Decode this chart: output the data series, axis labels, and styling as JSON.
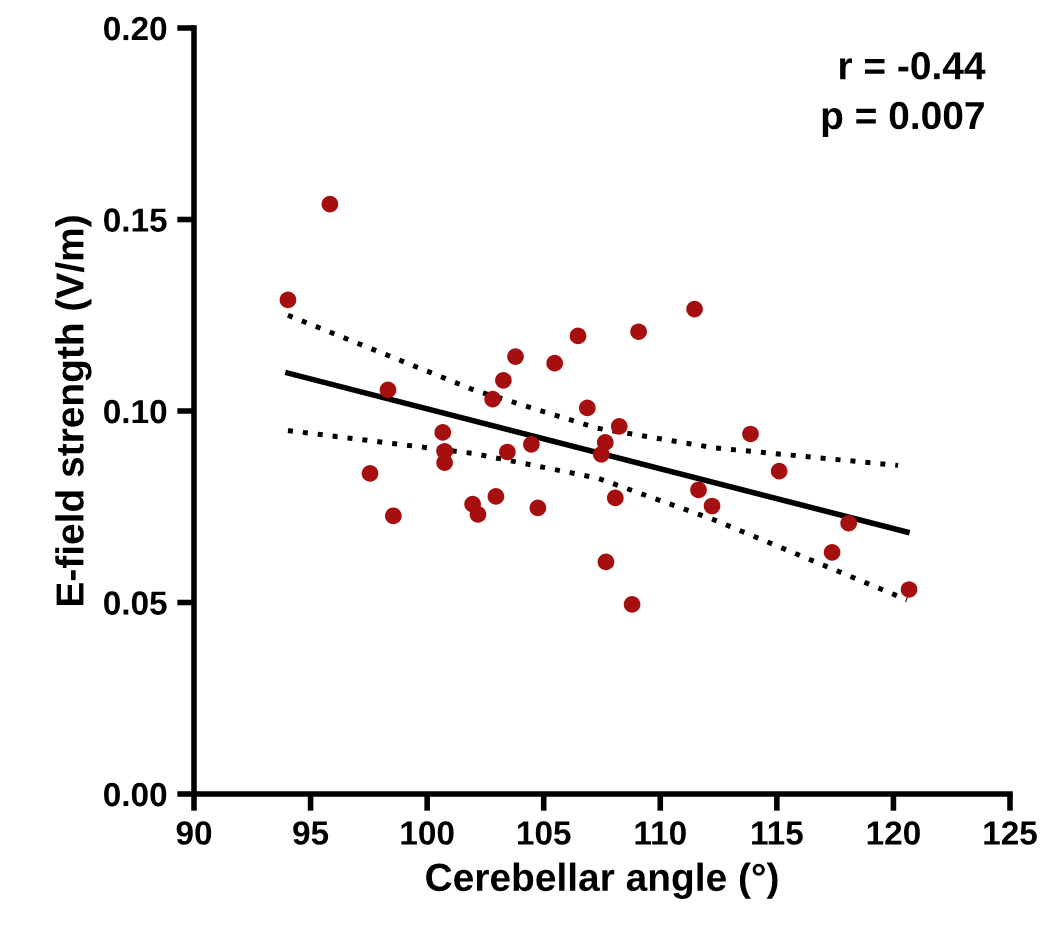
{
  "chart_data": {
    "type": "scatter",
    "xlabel": "Cerebellar angle (°)",
    "ylabel": "E-field strength (V/m)",
    "annotations": [
      "r = -0.44",
      "p = 0.007"
    ],
    "grid": false,
    "legend": false,
    "xlim": [
      90,
      125
    ],
    "xticks": [
      90,
      95,
      100,
      105,
      110,
      115,
      120,
      125
    ],
    "ylim": [
      0,
      0.2
    ],
    "yticks": [
      {
        "value": 0,
        "label": "0.00"
      },
      {
        "value": 0.05,
        "label": "0.05"
      },
      {
        "value": 0.1,
        "label": "0.10"
      },
      {
        "value": 0.15,
        "label": "0.15"
      },
      {
        "value": 0.2,
        "label": "0.20"
      }
    ],
    "series": [
      {
        "marker": "circle",
        "color": "#a50f0f",
        "x": [
          94.03,
          95.83,
          98.32,
          97.55,
          98.55,
          100.67,
          100.75,
          100.75,
          101.95,
          102.18,
          102.95,
          102.81,
          103.27,
          103.79,
          103.44,
          104.47,
          104.75,
          105.47,
          106.47,
          106.87,
          109.07,
          111.47,
          108.24,
          107.64,
          107.47,
          108.07,
          107.67,
          108.79,
          113.87,
          115.1,
          111.64,
          112.22,
          118.08,
          117.37,
          120.67
        ],
        "values": [
          0.129,
          0.154,
          0.1055,
          0.0837,
          0.0726,
          0.0944,
          0.0895,
          0.0865,
          0.0757,
          0.073,
          0.0777,
          0.1031,
          0.108,
          0.1142,
          0.0893,
          0.0913,
          0.0747,
          0.1125,
          0.1196,
          0.1008,
          0.1207,
          0.1266,
          0.096,
          0.0918,
          0.0887,
          0.0773,
          0.0606,
          0.0495,
          0.094,
          0.0843,
          0.0794,
          0.0752,
          0.0707,
          0.0631,
          0.0534
        ]
      },
      {
        "type": "line",
        "marker": "none",
        "color": "#000000",
        "line_style": "solid",
        "x": [
          94.03,
          120.58
        ],
        "values": [
          0.1099,
          0.0684
        ]
      },
      {
        "type": "line",
        "marker": "none",
        "color": "#000000",
        "line_style": "dotted",
        "x": [
          94.03,
          102,
          107.3,
          112.3,
          120.2
        ],
        "values": [
          0.125,
          0.1055,
          0.0955,
          0.0904,
          0.0858
        ]
      },
      {
        "type": "line",
        "marker": "none",
        "color": "#000000",
        "line_style": "dotted",
        "x": [
          94.03,
          102,
          107.3,
          112.3,
          120.58
        ],
        "values": [
          0.0949,
          0.0889,
          0.0825,
          0.0716,
          0.0507
        ]
      }
    ]
  }
}
